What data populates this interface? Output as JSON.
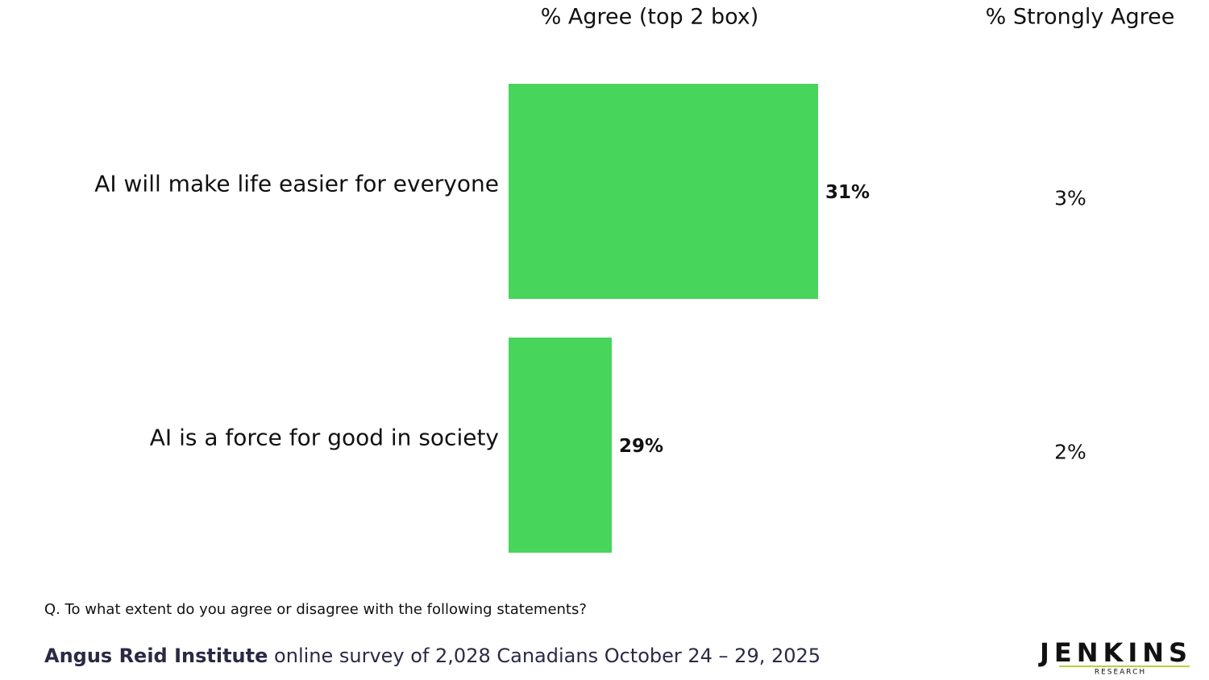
{
  "chart_data": {
    "type": "bar",
    "orientation": "horizontal",
    "categories": [
      "AI will make life easier for everyone",
      "AI is a force for good in society"
    ],
    "series": [
      {
        "name": "% Agree (top 2 box)",
        "color": "#48d55c",
        "values": [
          31,
          29
        ],
        "value_labels": [
          "31%",
          "29%"
        ]
      }
    ],
    "xlim": [
      28,
      32
    ],
    "strongly_agree": {
      "name": "% Strongly Agree",
      "values": [
        3,
        2
      ],
      "value_labels": [
        "3%",
        "2%"
      ]
    }
  },
  "footer": {
    "question": "Q. To what extent do you agree or disagree with the following statements?",
    "source_org": "Angus Reid Institute",
    "source_text": "online survey of 2,028 Canadians October 24 – 29, 2025"
  },
  "logo": {
    "name": "JENKINS",
    "sub": "RESEARCH"
  }
}
